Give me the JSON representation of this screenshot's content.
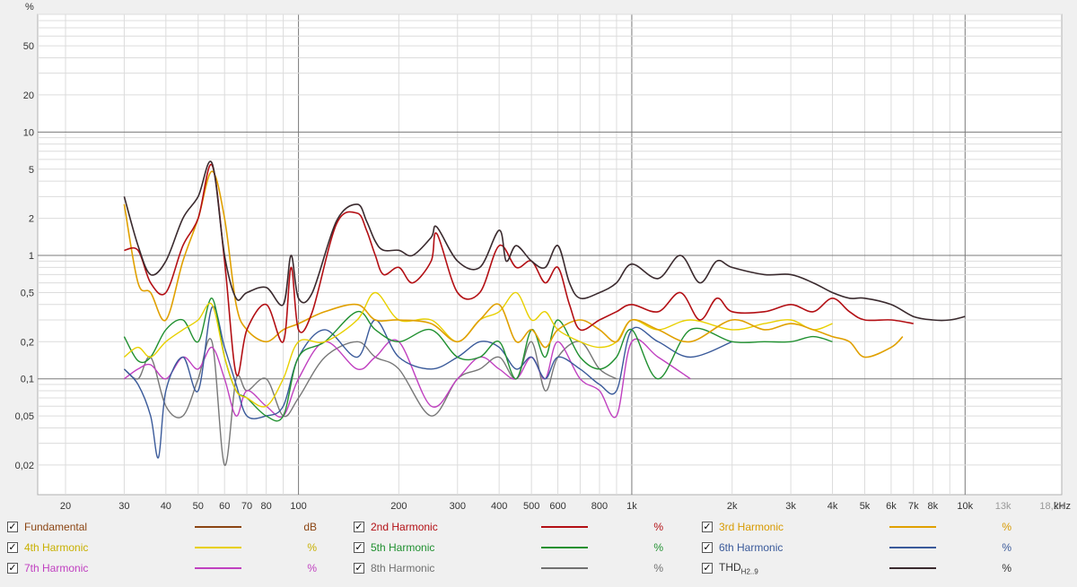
{
  "chart_data": {
    "type": "line",
    "title": "",
    "xlabel": "",
    "ylabel": "%",
    "x_unit_label": "kHz",
    "x_scale": "log",
    "y_scale": "log",
    "xlim": [
      16.5,
      19500
    ],
    "ylim": [
      0.0115,
      90
    ],
    "grid": true,
    "legend_position": "bottom",
    "x_ticks": [
      {
        "v": 20,
        "label": "20"
      },
      {
        "v": 30,
        "label": "30"
      },
      {
        "v": 40,
        "label": "40"
      },
      {
        "v": 50,
        "label": "50"
      },
      {
        "v": 60,
        "label": "60"
      },
      {
        "v": 70,
        "label": "70"
      },
      {
        "v": 80,
        "label": "80"
      },
      {
        "v": 100,
        "label": "100"
      },
      {
        "v": 200,
        "label": "200"
      },
      {
        "v": 300,
        "label": "300"
      },
      {
        "v": 400,
        "label": "400"
      },
      {
        "v": 500,
        "label": "500"
      },
      {
        "v": 600,
        "label": "600"
      },
      {
        "v": 800,
        "label": "800"
      },
      {
        "v": 1000,
        "label": "1k"
      },
      {
        "v": 2000,
        "label": "2k"
      },
      {
        "v": 3000,
        "label": "3k"
      },
      {
        "v": 4000,
        "label": "4k"
      },
      {
        "v": 5000,
        "label": "5k"
      },
      {
        "v": 6000,
        "label": "6k"
      },
      {
        "v": 7000,
        "label": "7k"
      },
      {
        "v": 8000,
        "label": "8k"
      },
      {
        "v": 10000,
        "label": "10k"
      },
      {
        "v": 13000,
        "label": "13k",
        "muted": true
      },
      {
        "v": 18200,
        "label": "18,2k",
        "muted": true
      }
    ],
    "y_ticks": [
      {
        "v": 50,
        "label": "50"
      },
      {
        "v": 20,
        "label": "20"
      },
      {
        "v": 10,
        "label": "10"
      },
      {
        "v": 5,
        "label": "5"
      },
      {
        "v": 2,
        "label": "2"
      },
      {
        "v": 1,
        "label": "1"
      },
      {
        "v": 0.5,
        "label": "0,5"
      },
      {
        "v": 0.2,
        "label": "0,2"
      },
      {
        "v": 0.1,
        "label": "0,1"
      },
      {
        "v": 0.05,
        "label": "0,05"
      },
      {
        "v": 0.02,
        "label": "0,02"
      }
    ],
    "series": [
      {
        "name": "THD",
        "color": "#3a2a2e",
        "width": 1.6,
        "x": [
          30,
          33,
          36,
          40,
          45,
          50,
          55,
          60,
          65,
          70,
          80,
          90,
          95,
          100,
          110,
          130,
          150,
          160,
          170,
          180,
          200,
          220,
          250,
          260,
          300,
          350,
          400,
          420,
          450,
          500,
          550,
          600,
          650,
          700,
          800,
          900,
          1000,
          1200,
          1400,
          1600,
          1800,
          2000,
          2500,
          3000,
          3500,
          4000,
          4500,
          5000,
          6000,
          7000,
          8000,
          9000,
          10000
        ],
        "y": [
          3.0,
          1.2,
          0.7,
          0.9,
          2.0,
          3.0,
          5.6,
          1.0,
          0.45,
          0.5,
          0.55,
          0.4,
          1.0,
          0.45,
          0.5,
          1.9,
          2.6,
          1.9,
          1.3,
          1.1,
          1.1,
          1.0,
          1.4,
          1.7,
          0.9,
          0.8,
          1.6,
          0.9,
          1.2,
          0.9,
          0.8,
          1.2,
          0.6,
          0.45,
          0.5,
          0.6,
          0.85,
          0.65,
          1.0,
          0.6,
          0.9,
          0.8,
          0.7,
          0.7,
          0.6,
          0.5,
          0.45,
          0.45,
          0.4,
          0.32,
          0.3,
          0.3,
          0.32
        ]
      },
      {
        "name": "2nd Harmonic",
        "color": "#b30f14",
        "width": 1.6,
        "x": [
          30,
          33,
          36,
          40,
          45,
          50,
          55,
          60,
          65,
          70,
          80,
          90,
          95,
          100,
          110,
          130,
          150,
          160,
          170,
          180,
          200,
          220,
          250,
          260,
          300,
          350,
          400,
          450,
          500,
          550,
          600,
          650,
          700,
          800,
          900,
          1000,
          1200,
          1400,
          1600,
          1800,
          2000,
          2500,
          3000,
          3500,
          4000,
          4500,
          5000,
          6000,
          7000
        ],
        "y": [
          1.1,
          1.1,
          0.6,
          0.5,
          1.2,
          2.0,
          5.4,
          0.9,
          0.11,
          0.25,
          0.4,
          0.2,
          0.8,
          0.25,
          0.35,
          1.8,
          2.2,
          1.6,
          1.0,
          0.7,
          0.8,
          0.6,
          0.9,
          1.5,
          0.5,
          0.5,
          1.2,
          0.8,
          0.9,
          0.6,
          0.8,
          0.4,
          0.25,
          0.3,
          0.35,
          0.4,
          0.35,
          0.5,
          0.3,
          0.45,
          0.35,
          0.35,
          0.4,
          0.35,
          0.45,
          0.35,
          0.3,
          0.3,
          0.28
        ]
      },
      {
        "name": "3rd Harmonic",
        "color": "#e0a000",
        "width": 1.6,
        "x": [
          30,
          33,
          36,
          40,
          45,
          50,
          55,
          60,
          65,
          70,
          80,
          90,
          100,
          120,
          150,
          170,
          200,
          250,
          300,
          350,
          400,
          450,
          500,
          550,
          600,
          700,
          800,
          900,
          1000,
          1200,
          1500,
          2000,
          2500,
          3000,
          3500,
          4000,
          4500,
          5000,
          6000,
          6500
        ],
        "y": [
          2.6,
          0.6,
          0.5,
          0.3,
          0.9,
          2.0,
          4.8,
          2.0,
          0.4,
          0.25,
          0.2,
          0.25,
          0.28,
          0.35,
          0.4,
          0.3,
          0.3,
          0.28,
          0.2,
          0.3,
          0.4,
          0.2,
          0.25,
          0.18,
          0.25,
          0.3,
          0.25,
          0.2,
          0.3,
          0.25,
          0.2,
          0.3,
          0.25,
          0.28,
          0.25,
          0.22,
          0.2,
          0.15,
          0.18,
          0.22
        ]
      },
      {
        "name": "4th Harmonic",
        "color": "#e8d000",
        "width": 1.4,
        "x": [
          30,
          33,
          36,
          40,
          45,
          50,
          55,
          60,
          65,
          70,
          80,
          90,
          100,
          120,
          150,
          170,
          200,
          250,
          300,
          350,
          400,
          450,
          500,
          550,
          600,
          700,
          800,
          900,
          1000,
          1200,
          1500,
          2000,
          2500,
          3000,
          3500,
          4000
        ],
        "y": [
          0.15,
          0.18,
          0.15,
          0.2,
          0.25,
          0.3,
          0.4,
          0.15,
          0.08,
          0.07,
          0.06,
          0.1,
          0.2,
          0.2,
          0.3,
          0.5,
          0.3,
          0.3,
          0.2,
          0.3,
          0.35,
          0.5,
          0.3,
          0.35,
          0.25,
          0.2,
          0.18,
          0.2,
          0.3,
          0.25,
          0.3,
          0.25,
          0.28,
          0.3,
          0.25,
          0.28
        ]
      },
      {
        "name": "5th Harmonic",
        "color": "#209030",
        "width": 1.4,
        "x": [
          30,
          33,
          36,
          40,
          45,
          50,
          55,
          60,
          65,
          70,
          80,
          90,
          100,
          120,
          150,
          170,
          200,
          250,
          300,
          350,
          400,
          450,
          500,
          550,
          600,
          700,
          800,
          900,
          1000,
          1200,
          1500,
          2000,
          2500,
          3000,
          3500,
          4000
        ],
        "y": [
          0.22,
          0.14,
          0.15,
          0.25,
          0.3,
          0.2,
          0.45,
          0.15,
          0.08,
          0.07,
          0.05,
          0.05,
          0.15,
          0.2,
          0.35,
          0.25,
          0.2,
          0.25,
          0.15,
          0.15,
          0.2,
          0.1,
          0.25,
          0.15,
          0.3,
          0.15,
          0.12,
          0.15,
          0.25,
          0.1,
          0.25,
          0.2,
          0.2,
          0.2,
          0.22,
          0.2
        ]
      },
      {
        "name": "6th Harmonic",
        "color": "#3a5a9a",
        "width": 1.4,
        "x": [
          30,
          33,
          36,
          38,
          40,
          45,
          50,
          55,
          60,
          65,
          70,
          80,
          90,
          100,
          120,
          150,
          170,
          200,
          250,
          300,
          350,
          400,
          450,
          500,
          550,
          600,
          700,
          800,
          900,
          1000,
          1200,
          1500,
          2000
        ],
        "y": [
          0.12,
          0.09,
          0.05,
          0.023,
          0.08,
          0.15,
          0.08,
          0.38,
          0.18,
          0.09,
          0.05,
          0.05,
          0.06,
          0.15,
          0.25,
          0.15,
          0.3,
          0.15,
          0.12,
          0.15,
          0.2,
          0.18,
          0.12,
          0.15,
          0.1,
          0.15,
          0.12,
          0.09,
          0.08,
          0.25,
          0.2,
          0.15,
          0.2
        ]
      },
      {
        "name": "7th Harmonic",
        "color": "#c040c0",
        "width": 1.4,
        "x": [
          30,
          33,
          36,
          40,
          45,
          50,
          55,
          60,
          65,
          70,
          80,
          90,
          100,
          120,
          150,
          170,
          200,
          250,
          300,
          350,
          400,
          450,
          500,
          550,
          600,
          700,
          800,
          900,
          1000,
          1200,
          1500
        ],
        "y": [
          0.1,
          0.12,
          0.13,
          0.1,
          0.15,
          0.12,
          0.18,
          0.1,
          0.05,
          0.08,
          0.06,
          0.05,
          0.1,
          0.2,
          0.12,
          0.15,
          0.2,
          0.06,
          0.1,
          0.15,
          0.12,
          0.1,
          0.15,
          0.1,
          0.2,
          0.1,
          0.08,
          0.05,
          0.2,
          0.15,
          0.1
        ]
      },
      {
        "name": "8th Harmonic",
        "color": "#777777",
        "width": 1.4,
        "x": [
          30,
          33,
          36,
          40,
          45,
          50,
          55,
          60,
          65,
          70,
          80,
          90,
          100,
          120,
          150,
          170,
          200,
          250,
          300,
          350,
          400,
          450,
          500,
          550,
          600,
          700,
          800,
          900
        ],
        "y": [
          0.12,
          0.1,
          0.15,
          0.06,
          0.05,
          0.1,
          0.2,
          0.02,
          0.1,
          0.08,
          0.1,
          0.05,
          0.07,
          0.15,
          0.2,
          0.15,
          0.12,
          0.05,
          0.1,
          0.12,
          0.15,
          0.1,
          0.2,
          0.08,
          0.15,
          0.2,
          0.12,
          0.1
        ]
      }
    ]
  },
  "legend": [
    {
      "id": "fundamental",
      "label": "Fundamental",
      "label_color": "#8b4513",
      "line_color": "#8b4513",
      "unit": "dB",
      "unit_color": "#8b4513",
      "checked": "✓"
    },
    {
      "id": "h2",
      "label": "2nd Harmonic",
      "label_color": "#b30f14",
      "line_color": "#b30f14",
      "unit": "%",
      "unit_color": "#b30f14",
      "checked": "✓"
    },
    {
      "id": "h3",
      "label": "3rd Harmonic",
      "label_color": "#d89a00",
      "line_color": "#e0a000",
      "unit": "%",
      "unit_color": "#d89a00",
      "checked": "✓"
    },
    {
      "id": "h4",
      "label": "4th Harmonic",
      "label_color": "#c8b000",
      "line_color": "#e8d000",
      "unit": "%",
      "unit_color": "#c8b000",
      "checked": "✓"
    },
    {
      "id": "h5",
      "label": "5th Harmonic",
      "label_color": "#209030",
      "line_color": "#209030",
      "unit": "%",
      "unit_color": "#209030",
      "checked": "✓"
    },
    {
      "id": "h6",
      "label": "6th Harmonic",
      "label_color": "#3a5a9a",
      "line_color": "#3a5a9a",
      "unit": "%",
      "unit_color": "#3a5a9a",
      "checked": "✓"
    },
    {
      "id": "h7",
      "label": "7th Harmonic",
      "label_color": "#c040c0",
      "line_color": "#c040c0",
      "unit": "%",
      "unit_color": "#c040c0",
      "checked": "✓"
    },
    {
      "id": "h8",
      "label": "8th Harmonic",
      "label_color": "#707070",
      "line_color": "#707070",
      "unit": "%",
      "unit_color": "#707070",
      "checked": "✓"
    },
    {
      "id": "thd",
      "label": "THD",
      "label_sub": "H2..9",
      "label_color": "#333333",
      "line_color": "#3a2a2e",
      "unit": "%",
      "unit_color": "#333333",
      "checked": "✓"
    }
  ]
}
